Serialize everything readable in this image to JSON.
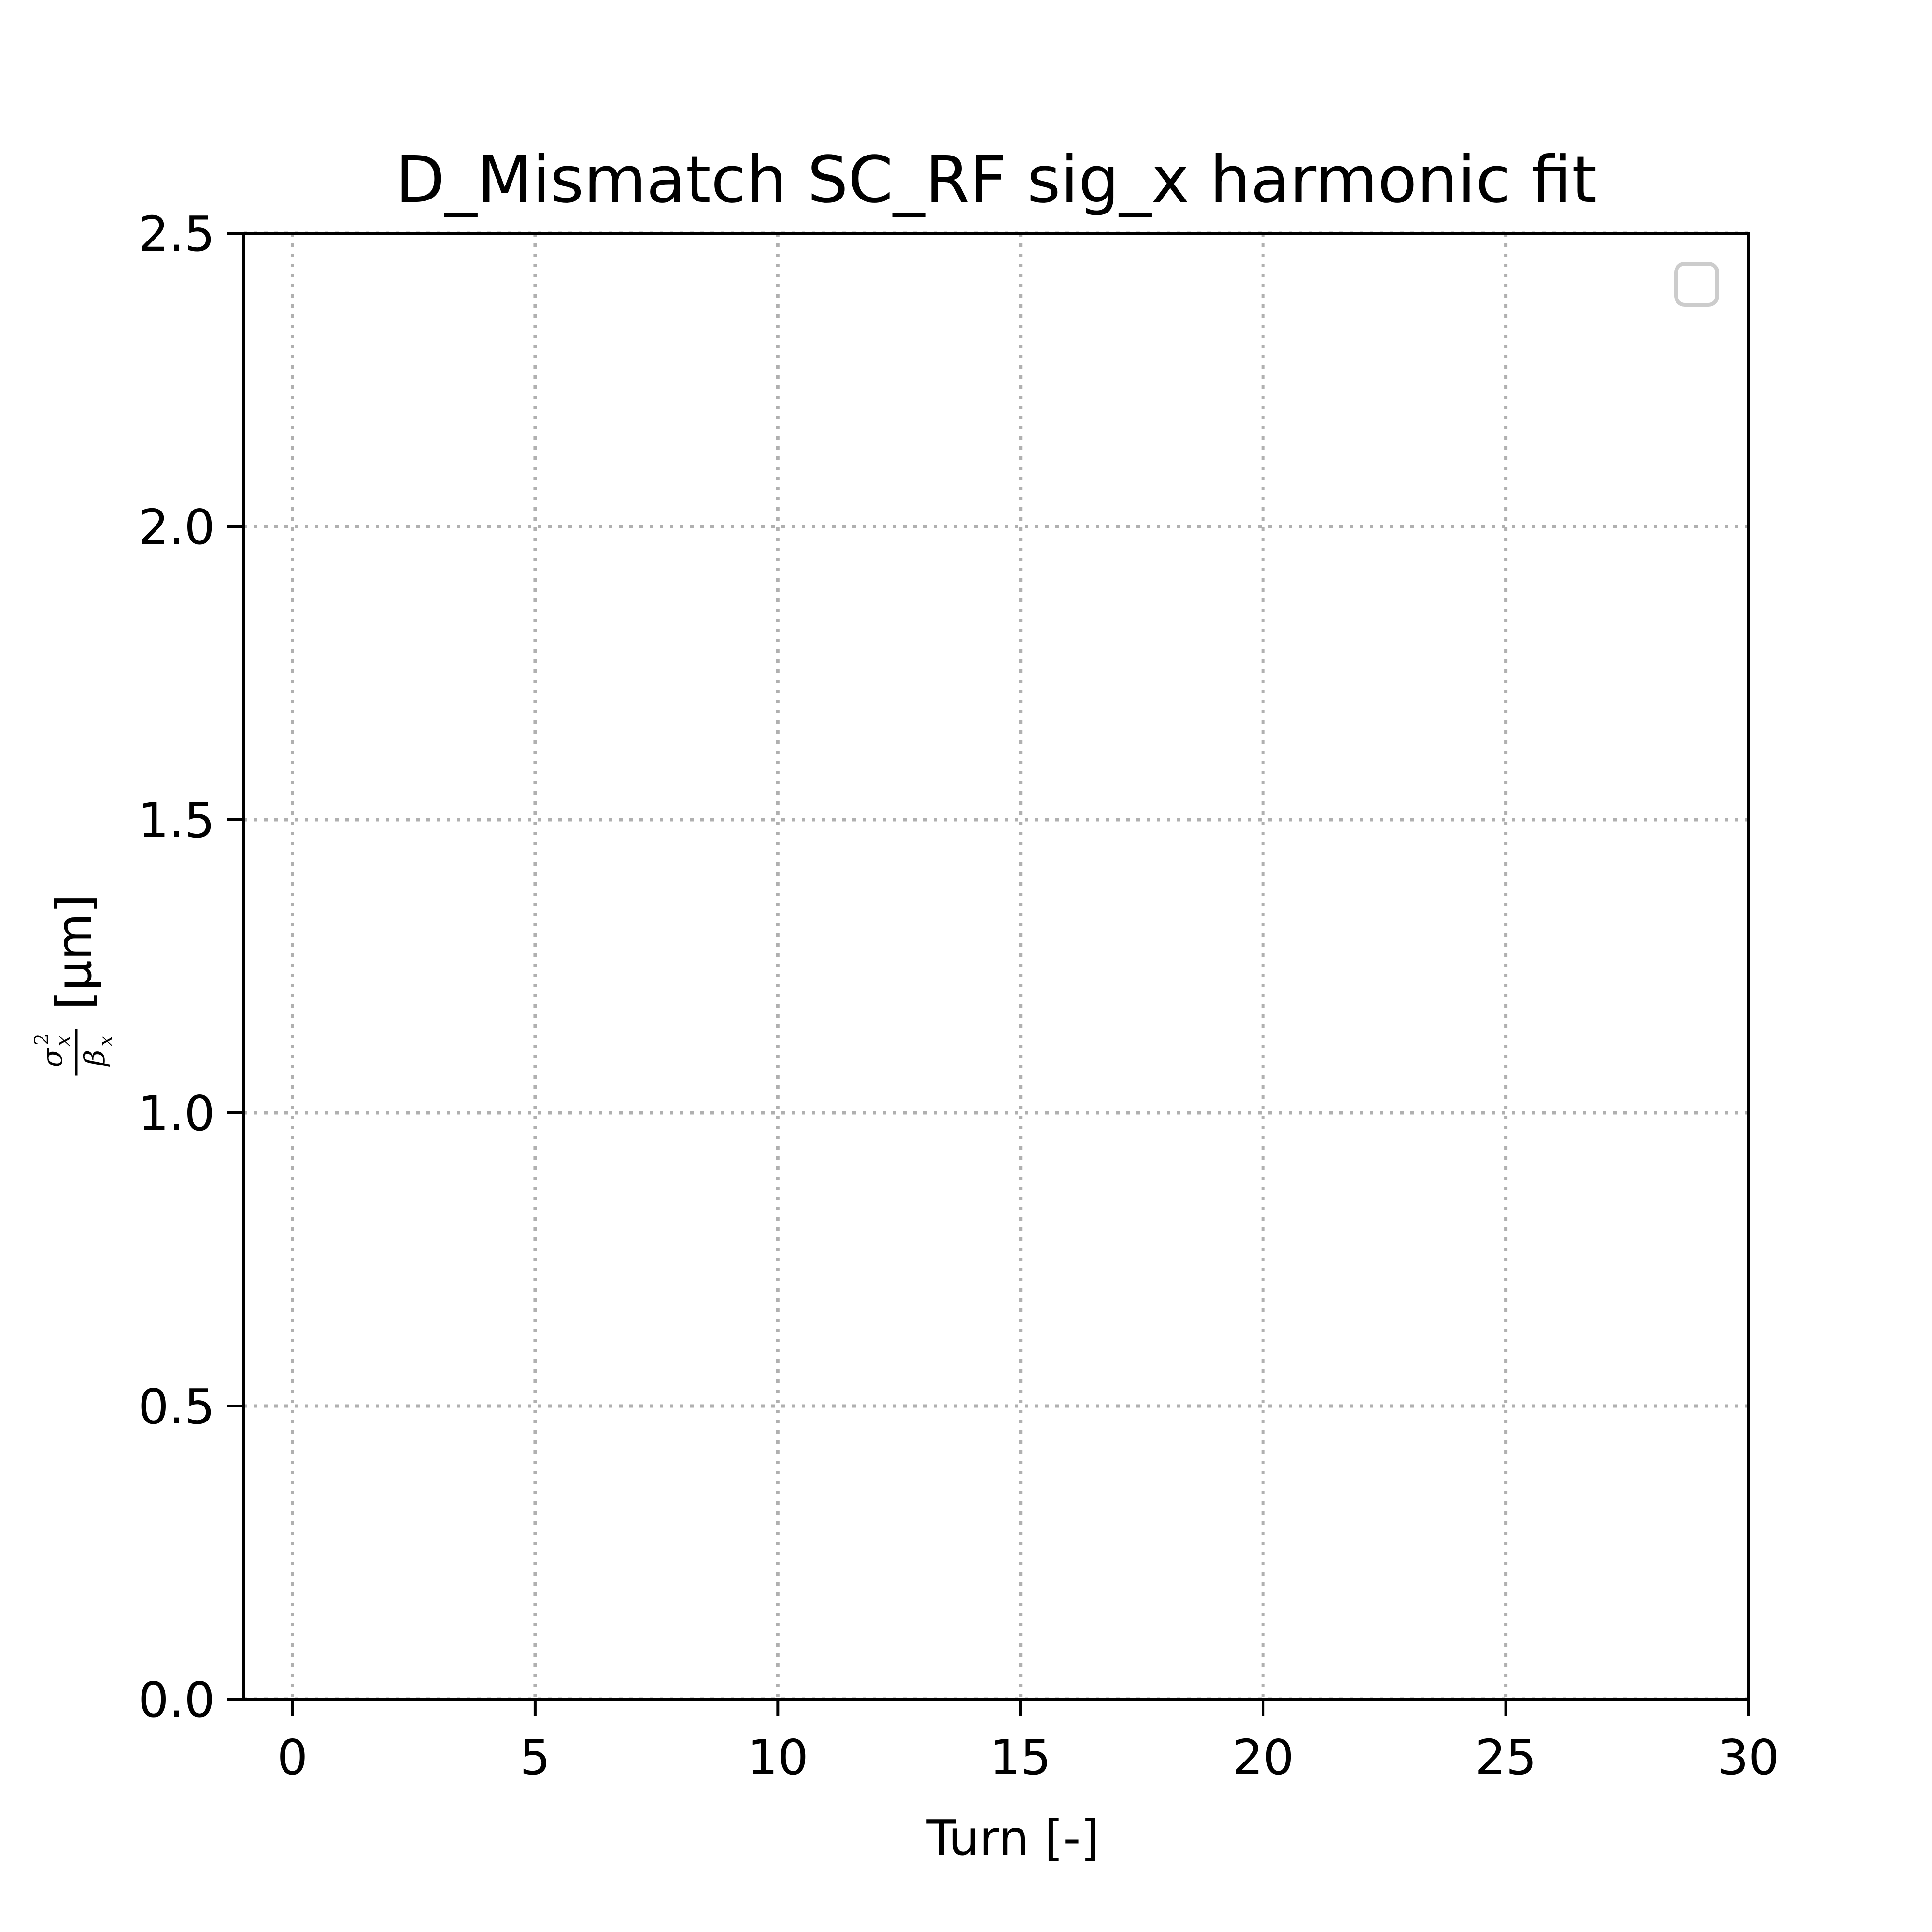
{
  "chart_data": {
    "type": "line",
    "title": "D_Mismatch SC_RF sig_x harmonic fit",
    "xlabel": "Turn [-]",
    "ylabel": {
      "unit": "[μm]",
      "numerator_symbol": "σ",
      "numerator_superscript": "2",
      "numerator_subscript": "x",
      "denominator_symbol": "β",
      "denominator_subscript": "x"
    },
    "xlim": [
      -1,
      30
    ],
    "ylim": [
      0.0,
      2.5
    ],
    "xticks": [
      0,
      5,
      10,
      15,
      20,
      25,
      30
    ],
    "xtick_labels": [
      "0",
      "5",
      "10",
      "15",
      "20",
      "25",
      "30"
    ],
    "yticks": [
      0.0,
      0.5,
      1.0,
      1.5,
      2.0,
      2.5
    ],
    "ytick_labels": [
      "0.0",
      "0.5",
      "1.0",
      "1.5",
      "2.0",
      "2.5"
    ],
    "grid": true,
    "legend": {
      "location": "upper right",
      "entries": []
    },
    "series": []
  }
}
